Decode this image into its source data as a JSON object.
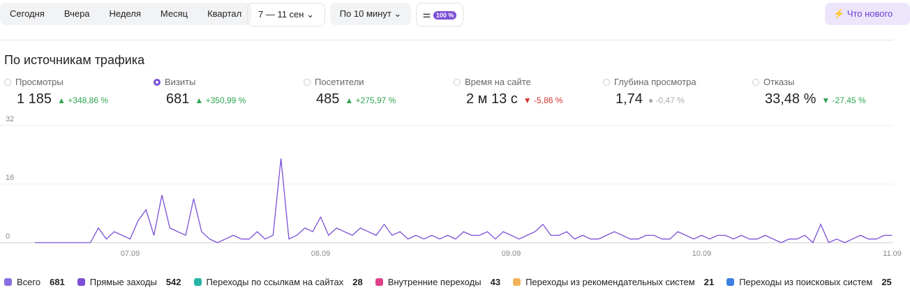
{
  "toolbar": {
    "periods": [
      "Сегодня",
      "Вчера",
      "Неделя",
      "Месяц",
      "Квартал"
    ],
    "date_range": "7 — 11 сен",
    "grouping": "По 10 минут",
    "sample": "100 %",
    "whats_new": "Что нового"
  },
  "section_title": "По источникам трафика",
  "metrics": [
    {
      "label": "Просмотры",
      "value": "1 185",
      "change": "+348,86 %",
      "direction": "up",
      "selected": false
    },
    {
      "label": "Визиты",
      "value": "681",
      "change": "+350,99 %",
      "direction": "up",
      "selected": true
    },
    {
      "label": "Посетители",
      "value": "485",
      "change": "+275,97 %",
      "direction": "up",
      "selected": false
    },
    {
      "label": "Время на сайте",
      "value": "2 м 13 с",
      "change": "-5,86 %",
      "direction": "down",
      "selected": false
    },
    {
      "label": "Глубина просмотра",
      "value": "1,74",
      "change": "-0,47 %",
      "direction": "neutral",
      "selected": false
    },
    {
      "label": "Отказы",
      "value": "33,48 %",
      "change": "-27,45 %",
      "direction": "good-down",
      "selected": false
    }
  ],
  "chart_data": {
    "type": "line",
    "categories": [
      null,
      null,
      null,
      null,
      null,
      null,
      null,
      null,
      null,
      null,
      null,
      null,
      "07.09",
      null,
      null,
      null,
      null,
      null,
      null,
      null,
      null,
      null,
      null,
      null,
      null,
      null,
      null,
      null,
      null,
      null,
      null,
      null,
      null,
      null,
      null,
      null,
      "08.09",
      null,
      null,
      null,
      null,
      null,
      null,
      null,
      null,
      null,
      null,
      null,
      null,
      null,
      null,
      null,
      null,
      null,
      null,
      null,
      null,
      null,
      null,
      null,
      "09.09",
      null,
      null,
      null,
      null,
      null,
      null,
      null,
      null,
      null,
      null,
      null,
      null,
      null,
      null,
      null,
      null,
      null,
      null,
      null,
      null,
      null,
      null,
      null,
      "10.09",
      null,
      null,
      null,
      null,
      null,
      null,
      null,
      null,
      null,
      null,
      null,
      null,
      null,
      null,
      null,
      null,
      null,
      null,
      null,
      null,
      null,
      null,
      null,
      "11.09"
    ],
    "series": [
      {
        "color": "#7b4fd6",
        "values": [
          0,
          0,
          0,
          0,
          0,
          0,
          0,
          0,
          4,
          1,
          3,
          2,
          1,
          6,
          9,
          2,
          13,
          4,
          3,
          2,
          12,
          3,
          1,
          0,
          1,
          2,
          1,
          1,
          3,
          1,
          2,
          23,
          1,
          2,
          4,
          3,
          7,
          2,
          4,
          3,
          2,
          4,
          3,
          2,
          5,
          2,
          3,
          1,
          2,
          1,
          2,
          1,
          2,
          1,
          3,
          2,
          2,
          3,
          1,
          3,
          2,
          1,
          2,
          3,
          5,
          2,
          2,
          3,
          1,
          2,
          1,
          1,
          2,
          3,
          2,
          1,
          1,
          2,
          2,
          1,
          1,
          3,
          2,
          1,
          2,
          1,
          2,
          2,
          1,
          2,
          1,
          1,
          2,
          1,
          0,
          1,
          1,
          2,
          0,
          5,
          0,
          1,
          0,
          1,
          2,
          1,
          1,
          2,
          2
        ]
      }
    ],
    "ylim": [
      0,
      32
    ],
    "yticks": [
      0,
      16,
      32
    ],
    "grid": true,
    "legend": [
      {
        "name": "Всего",
        "total": 681,
        "color": "#8a6fe0"
      },
      {
        "name": "Прямые заходы",
        "total": 542,
        "color": "#7b4fd6"
      },
      {
        "name": "Переходы по ссылкам на сайтах",
        "total": 28,
        "color": "#26b5a6"
      },
      {
        "name": "Внутренние переходы",
        "total": 43,
        "color": "#e0408a"
      },
      {
        "name": "Переходы из рекомендательных систем",
        "total": 21,
        "color": "#f2b35a"
      },
      {
        "name": "Переходы из поисковых систем",
        "total": 25,
        "color": "#3d7fe0"
      }
    ]
  }
}
